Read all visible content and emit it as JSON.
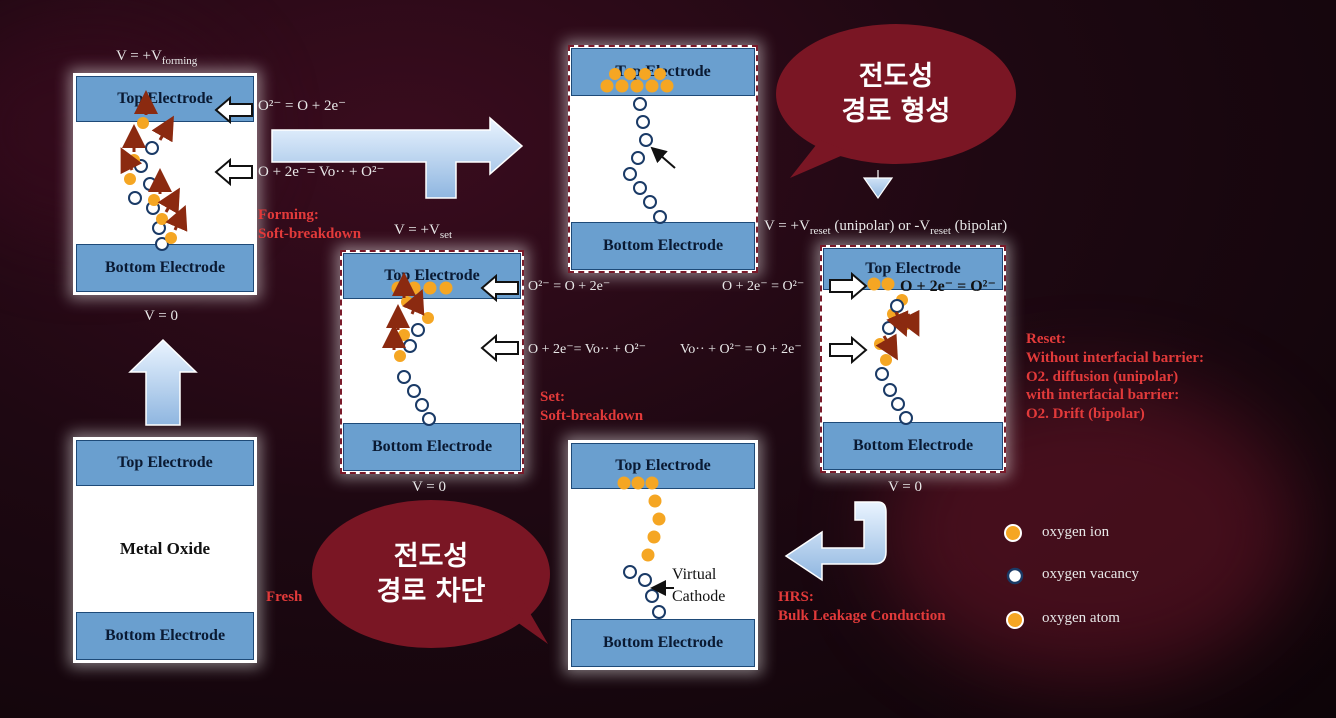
{
  "panels": {
    "top_label": "Top Electrode",
    "bottom_label": "Bottom Electrode",
    "metal_oxide": "Metal Oxide"
  },
  "voltages": {
    "forming_prefix": "V = +V",
    "forming_sub": "forming",
    "v_zero": "V = 0",
    "set_prefix": "V = +V",
    "set_sub": "set",
    "reset_a": "V = +V",
    "reset_sub1": "reset",
    "reset_b": " (unipolar) or -V",
    "reset_sub2": "reset",
    "reset_c": " (bipolar)"
  },
  "equations": {
    "forming_top": "O²⁻ = O + 2e⁻",
    "forming_mid": "O + 2e⁻= Vo·· + O²⁻",
    "set_top": "O²⁻ = O + 2e⁻",
    "set_mid": "O + 2e⁻= Vo·· + O²⁻",
    "reset_left_top": "O + 2e⁻ = O²⁻",
    "reset_inner_top": "O + 2e⁻ = O²⁻",
    "reset_left_mid": "Vo·· + O²⁻ = O + 2e⁻"
  },
  "annotations": {
    "forming_1": "Forming:",
    "forming_2": "Soft-breakdown",
    "set_1": "Set:",
    "set_2": "Soft-breakdown",
    "reset_1": "Reset:",
    "reset_2": "Without interfacial barrier:",
    "reset_3": "O2. diffusion (unipolar)",
    "reset_4": "with interfacial barrier:",
    "reset_5": "O2. Drift (bipolar)",
    "hrs_1": "HRS:",
    "hrs_2": "Bulk Leakage Conduction",
    "fresh": "Fresh",
    "virtual_1": "Virtual",
    "virtual_2": "Cathode"
  },
  "bubbles": {
    "form_1": "전도성",
    "form_2": "경로 형성",
    "break_1": "전도성",
    "break_2": "경로 차단"
  },
  "legend": {
    "ion": "oxygen ion",
    "vacancy": "oxygen vacancy",
    "atom": "oxygen atom"
  },
  "colors": {
    "electrode": "#6a9fcf",
    "ion": "#f5a623",
    "annotation": "#e23a3a",
    "bubble": "#7a1624"
  }
}
